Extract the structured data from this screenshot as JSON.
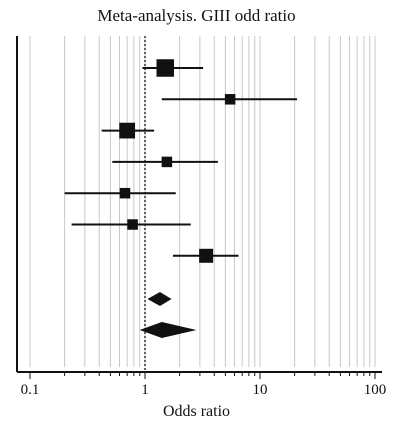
{
  "chart_data": {
    "type": "forest",
    "title": "Meta-analysis. GIII odd ratio",
    "xlabel": "Odds ratio",
    "x_scale": "log",
    "xlim": [
      0.08,
      115
    ],
    "tick_values": [
      0.1,
      1,
      10,
      100
    ],
    "tick_labels": [
      "0.1",
      "1",
      "10",
      "100"
    ],
    "reference_line": 1,
    "grid": "vertical-minor",
    "studies": [
      {
        "or": 1.5,
        "ci": [
          0.95,
          3.2
        ],
        "weight": 3
      },
      {
        "or": 5.5,
        "ci": [
          1.4,
          21
        ],
        "weight": 1
      },
      {
        "or": 0.7,
        "ci": [
          0.42,
          1.2
        ],
        "weight": 2.5
      },
      {
        "or": 1.55,
        "ci": [
          0.52,
          4.3
        ],
        "weight": 1
      },
      {
        "or": 0.67,
        "ci": [
          0.2,
          1.85
        ],
        "weight": 1
      },
      {
        "or": 0.78,
        "ci": [
          0.23,
          2.5
        ],
        "weight": 1
      },
      {
        "or": 3.4,
        "ci": [
          1.75,
          6.5
        ],
        "weight": 2
      }
    ],
    "pooled": [
      {
        "or": 1.35,
        "ci": [
          1.05,
          1.7
        ]
      },
      {
        "or": 1.4,
        "ci": [
          0.9,
          2.8
        ]
      }
    ]
  },
  "colors": {
    "marks": "#111111",
    "grid": "#c8c8c8",
    "axis": "#111111"
  }
}
